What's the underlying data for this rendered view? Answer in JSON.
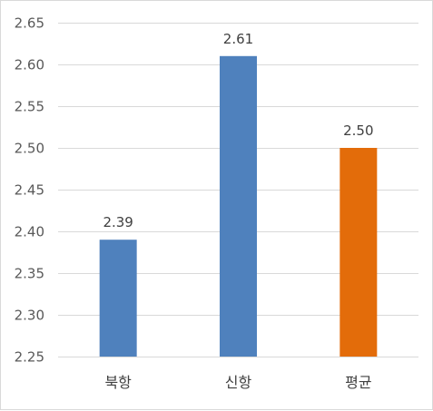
{
  "chart_data": {
    "type": "bar",
    "categories": [
      "북항",
      "신항",
      "평균"
    ],
    "values": [
      2.39,
      2.61,
      2.5
    ],
    "data_labels": [
      "2.39",
      "2.61",
      "2.50"
    ],
    "y_ticks": [
      "2.25",
      "2.30",
      "2.35",
      "2.40",
      "2.45",
      "2.50",
      "2.55",
      "2.60",
      "2.65"
    ],
    "ylim": [
      2.25,
      2.65
    ],
    "grid": true,
    "legend": "none",
    "title": "",
    "xlabel": "",
    "ylabel": "",
    "colors": [
      "#4f81bd",
      "#4f81bd",
      "#e36c0a"
    ],
    "gridline_color": "#d9d9d9"
  }
}
